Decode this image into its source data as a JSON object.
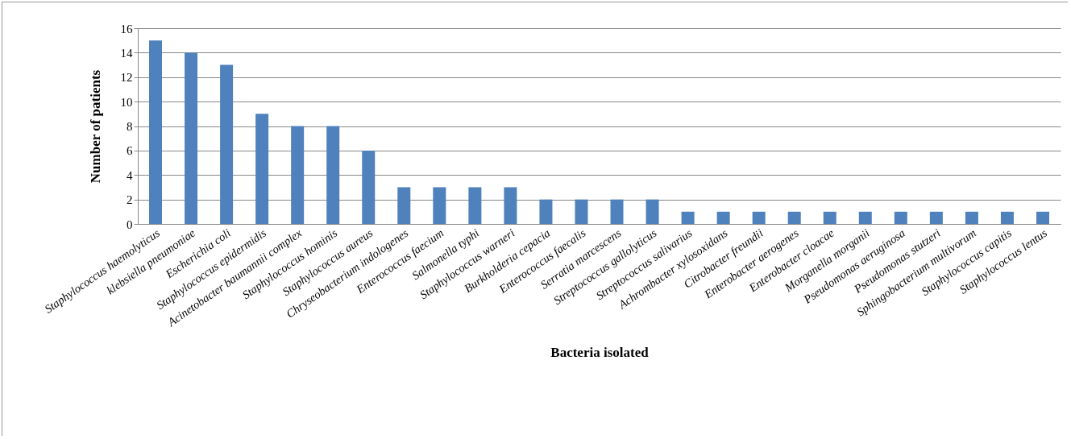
{
  "chart_data": {
    "type": "bar",
    "xlabel": "Bacteria isolated",
    "ylabel": "Number of patients",
    "categories": [
      "Staphylococcus haemolyticus",
      "klebsiella pneumoniae",
      "Escherichia coli",
      "Staphylococcus epidermidis",
      "Acinetobacter baumannii complex",
      "Staphylococcus hominis",
      "Staphylococcus aureus",
      "Chryseobacterium indologenes",
      "Enterococcus faecium",
      "Salmonella typhi",
      "Staphylococcus warneri",
      "Burkholderia cepacia",
      "Enterococcus faecalis",
      "Serratia marcescens",
      "Streptococcus gallolyticus",
      "Streptococcus salivarius",
      "Achrombacter xylosoxidans",
      "Citrobacter freundii",
      "Enterobacter aerogenes",
      "Enterobacter cloacae",
      "Morganella morganii",
      "Pseudomonas aeruginosa",
      "Pseudomonas stutzeri",
      "Sphingobacterium multivorum",
      "Staphylococcus capitis",
      "Staphylococcus lentus"
    ],
    "values": [
      15,
      14,
      13,
      9,
      8,
      8,
      6,
      3,
      3,
      3,
      3,
      2,
      2,
      2,
      2,
      1,
      1,
      1,
      1,
      1,
      1,
      1,
      1,
      1,
      1,
      1
    ],
    "color": "#4f81bd",
    "ylim": [
      0,
      16
    ],
    "yticks": [
      0,
      2,
      4,
      6,
      8,
      10,
      12,
      14,
      16
    ],
    "grid": "y"
  }
}
